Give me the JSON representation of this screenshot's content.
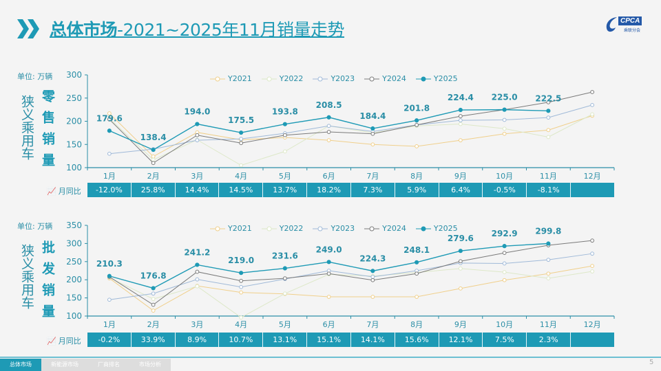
{
  "header": {
    "title_bold": "总体市场",
    "title_rest": "-2021~2025年11月销量走势",
    "logo_text": "CPCA",
    "logo_sub": "乘联分会"
  },
  "colors": {
    "accent": "#1e9ab5",
    "Y2021": "#f0cf8a",
    "Y2022": "#dde8c8",
    "Y2023": "#9fb9d8",
    "Y2024": "#7a7a7a",
    "Y2025": "#1e9ab5"
  },
  "footer": {
    "tabs": [
      "总体市场",
      "新能源市场",
      "厂商排名",
      "市场分析"
    ],
    "page": "5"
  },
  "chart_data": [
    {
      "type": "line",
      "unit_label": "单位: 万辆",
      "side_label": "狭义乘用车",
      "metric_label": "零售销量",
      "categories": [
        "1月",
        "2月",
        "3月",
        "4月",
        "5月",
        "6月",
        "7月",
        "8月",
        "9月",
        "10月",
        "11月",
        "12月"
      ],
      "ylim": [
        100,
        300
      ],
      "yticks": [
        100,
        150,
        200,
        250,
        300
      ],
      "grid": false,
      "legend": "top",
      "series": [
        {
          "name": "Y2021",
          "values": [
            217,
            124,
            176,
            160,
            165,
            159,
            150,
            146,
            159,
            173,
            181,
            212
          ]
        },
        {
          "name": "Y2022",
          "values": [
            206,
            117,
            160,
            105,
            135,
            190,
            175,
            190,
            194,
            184,
            166,
            215
          ]
        },
        {
          "name": "Y2023",
          "values": [
            130,
            140,
            159,
            162,
            174,
            190,
            178,
            192,
            202,
            203,
            208,
            235
          ]
        },
        {
          "name": "Y2024",
          "values": [
            204,
            110,
            170,
            153,
            170,
            177,
            173,
            192,
            211,
            225,
            241,
            263
          ]
        },
        {
          "name": "Y2025",
          "values": [
            179.6,
            138.4,
            194.0,
            175.5,
            193.8,
            208.5,
            184.4,
            201.8,
            224.4,
            225.0,
            222.5,
            null
          ],
          "labels": [
            "179.6",
            "138.4",
            "194.0",
            "175.5",
            "193.8",
            "208.5",
            "184.4",
            "201.8",
            "224.4",
            "225.0",
            "222.5",
            ""
          ]
        }
      ],
      "yoy_label": "月同比",
      "yoy": [
        "-12.0%",
        "25.8%",
        "14.4%",
        "14.5%",
        "13.7%",
        "18.2%",
        "7.3%",
        "5.9%",
        "6.4%",
        "-0.5%",
        "-8.1%",
        ""
      ]
    },
    {
      "type": "line",
      "unit_label": "单位: 万辆",
      "side_label": "狭义乘用车",
      "metric_label": "批发销量",
      "categories": [
        "1月",
        "2月",
        "3月",
        "4月",
        "5月",
        "6月",
        "7月",
        "8月",
        "9月",
        "10月",
        "11月",
        "12月"
      ],
      "ylim": [
        100,
        350
      ],
      "yticks": [
        100,
        150,
        200,
        250,
        300,
        350
      ],
      "grid": false,
      "legend": "top",
      "series": [
        {
          "name": "Y2021",
          "values": [
            204,
            115,
            183,
            165,
            161,
            153,
            153,
            153,
            176,
            199,
            217,
            238
          ]
        },
        {
          "name": "Y2022",
          "values": [
            206,
            147,
            182,
            96,
            162,
            215,
            210,
            220,
            231,
            221,
            204,
            223
          ]
        },
        {
          "name": "Y2023",
          "values": [
            145,
            162,
            201,
            180,
            202,
            225,
            208,
            225,
            246,
            245,
            255,
            272
          ]
        },
        {
          "name": "Y2024",
          "values": [
            208,
            131,
            222,
            197,
            204,
            217,
            199,
            217,
            251,
            274,
            295,
            308
          ]
        },
        {
          "name": "Y2025",
          "values": [
            210.3,
            176.8,
            241.2,
            219.0,
            231.6,
            249.0,
            224.3,
            248.1,
            279.6,
            292.9,
            299.8,
            null
          ],
          "labels": [
            "210.3",
            "176.8",
            "241.2",
            "219.0",
            "231.6",
            "249.0",
            "224.3",
            "248.1",
            "279.6",
            "292.9",
            "299.8",
            ""
          ]
        }
      ],
      "yoy_label": "月同比",
      "yoy": [
        "-0.2%",
        "33.9%",
        "8.9%",
        "10.7%",
        "13.1%",
        "15.1%",
        "14.1%",
        "15.6%",
        "12.1%",
        "7.5%",
        "2.3%",
        ""
      ]
    }
  ]
}
